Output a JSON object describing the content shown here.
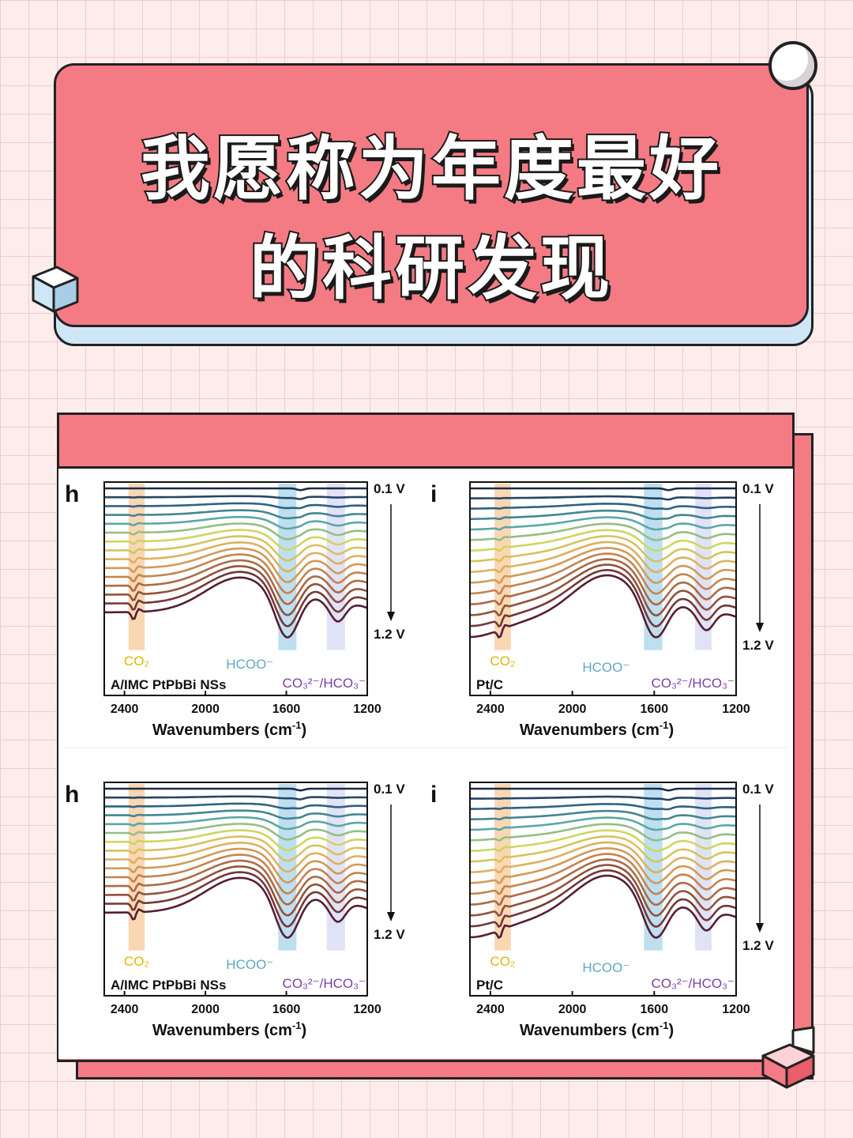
{
  "title": {
    "line1": "我愿称为年度最好",
    "line2": "的科研发现"
  },
  "colors": {
    "accent": "#f47b84",
    "card_shadow": "#cfe6f7",
    "band_co2": "#f7c99a",
    "band_hcoo": "#a8d4ea",
    "band_carbonate": "#d5d8f3",
    "label_co2": "#e0b700",
    "label_hcoo": "#5fa7c4",
    "label_carbonate": "#7a3fa3"
  },
  "chart_data": [
    {
      "type": "line",
      "panel_letter": "h",
      "sample_label": "A/IMC PtPbBi NSs",
      "xlabel": "Wavenumbers (cm⁻¹)",
      "x_reversed": true,
      "xlim": [
        2500,
        1200
      ],
      "xticks": [
        "2400",
        "2000",
        "1600",
        "1200"
      ],
      "potential_start": "0.1 V",
      "potential_end": "1.2 V",
      "bands": [
        {
          "label": "CO₂",
          "from": 2380,
          "to": 2300
        },
        {
          "label": "HCOO⁻",
          "from": 1640,
          "to": 1550
        },
        {
          "label": "CO₃²⁻/HCO₃⁻",
          "from": 1400,
          "to": 1310
        }
      ],
      "x": [
        2500,
        2450,
        2400,
        2370,
        2340,
        2300,
        2250,
        2200,
        2100,
        2000,
        1900,
        1800,
        1750,
        1700,
        1650,
        1620,
        1600,
        1580,
        1550,
        1500,
        1450,
        1400,
        1350,
        1300,
        1250,
        1200
      ],
      "series_count": 15
    },
    {
      "type": "line",
      "panel_letter": "i",
      "sample_label": "Pt/C",
      "xlabel": "Wavenumbers (cm⁻¹)",
      "x_reversed": true,
      "xlim": [
        2500,
        1200
      ],
      "xticks": [
        "2400",
        "2000",
        "1600",
        "1200"
      ],
      "potential_start": "0.1 V",
      "potential_end": "1.2 V",
      "bands": [
        {
          "label": "CO₂",
          "from": 2380,
          "to": 2300
        },
        {
          "label": "HCOO⁻",
          "from": 1650,
          "to": 1560
        },
        {
          "label": "CO₃²⁻/HCO₃⁻",
          "from": 1400,
          "to": 1320
        }
      ],
      "x": [
        2500,
        2450,
        2400,
        2370,
        2340,
        2300,
        2250,
        2200,
        2100,
        2000,
        1900,
        1800,
        1750,
        1700,
        1650,
        1620,
        1600,
        1580,
        1550,
        1500,
        1450,
        1400,
        1350,
        1300,
        1250,
        1200
      ],
      "series_count": 15
    },
    {
      "type": "line",
      "panel_letter": "h",
      "sample_label": "A/IMC PtPbBi NSs",
      "xlabel": "Wavenumbers (cm⁻¹)",
      "x_reversed": true,
      "xlim": [
        2500,
        1200
      ],
      "xticks": [
        "2400",
        "2000",
        "1600",
        "1200"
      ],
      "potential_start": "0.1 V",
      "potential_end": "1.2 V",
      "bands": [
        {
          "label": "CO₂",
          "from": 2380,
          "to": 2300
        },
        {
          "label": "HCOO⁻",
          "from": 1640,
          "to": 1550
        },
        {
          "label": "CO₃²⁻/HCO₃⁻",
          "from": 1400,
          "to": 1310
        }
      ],
      "x": [
        2500,
        2450,
        2400,
        2370,
        2340,
        2300,
        2250,
        2200,
        2100,
        2000,
        1900,
        1800,
        1750,
        1700,
        1650,
        1620,
        1600,
        1580,
        1550,
        1500,
        1450,
        1400,
        1350,
        1300,
        1250,
        1200
      ],
      "series_count": 15
    },
    {
      "type": "line",
      "panel_letter": "i",
      "sample_label": "Pt/C",
      "xlabel": "Wavenumbers (cm⁻¹)",
      "x_reversed": true,
      "xlim": [
        2500,
        1200
      ],
      "xticks": [
        "2400",
        "2000",
        "1600",
        "1200"
      ],
      "potential_start": "0.1 V",
      "potential_end": "1.2 V",
      "bands": [
        {
          "label": "CO₂",
          "from": 2380,
          "to": 2300
        },
        {
          "label": "HCOO⁻",
          "from": 1650,
          "to": 1560
        },
        {
          "label": "CO₃²⁻/HCO₃⁻",
          "from": 1400,
          "to": 1320
        }
      ],
      "x": [
        2500,
        2450,
        2400,
        2370,
        2340,
        2300,
        2250,
        2200,
        2100,
        2000,
        1900,
        1800,
        1750,
        1700,
        1650,
        1620,
        1600,
        1580,
        1550,
        1500,
        1450,
        1400,
        1350,
        1300,
        1250,
        1200
      ],
      "series_count": 15
    }
  ]
}
